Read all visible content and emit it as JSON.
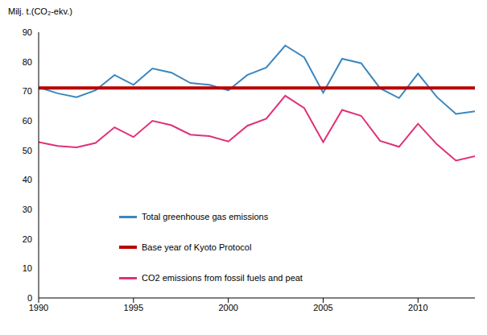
{
  "chart_data": {
    "type": "line",
    "y_label": "Milj. t.(CO₂-ekv.)",
    "x": [
      1990,
      1991,
      1992,
      1993,
      1994,
      1995,
      1996,
      1997,
      1998,
      1999,
      2000,
      2001,
      2002,
      2003,
      2004,
      2005,
      2006,
      2007,
      2008,
      2009,
      2010,
      2011,
      2012,
      2013
    ],
    "series": [
      {
        "name": "Total greenhouse gas emissions",
        "color": "#3a87c0",
        "values": [
          71.3,
          69.3,
          68,
          70.3,
          75.5,
          72.2,
          77.7,
          76.3,
          72.8,
          72.2,
          70.3,
          75.5,
          78,
          85.5,
          81.5,
          69.5,
          81,
          79.5,
          71,
          67.7,
          76,
          68,
          62.3,
          63.2
        ]
      },
      {
        "name": "Base year of Kyoto Protocol",
        "color": "#b80000",
        "values": [
          71.1,
          71.1,
          71.1,
          71.1,
          71.1,
          71.1,
          71.1,
          71.1,
          71.1,
          71.1,
          71.1,
          71.1,
          71.1,
          71.1,
          71.1,
          71.1,
          71.1,
          71.1,
          71.1,
          71.1,
          71.1,
          71.1,
          71.1,
          71.1
        ]
      },
      {
        "name": "CO2 emissions from fossil fuels and peat",
        "color": "#e0307a",
        "values": [
          52.8,
          51.5,
          51,
          52.5,
          57.8,
          54.5,
          60,
          58.5,
          55.3,
          54.8,
          53,
          58.3,
          60.7,
          68.5,
          64.3,
          52.8,
          63.7,
          61.7,
          53.2,
          51.2,
          59,
          52,
          46.5,
          48
        ]
      }
    ],
    "xlim": [
      1990,
      2013
    ],
    "xticks": [
      1990,
      1995,
      2000,
      2005,
      2010
    ],
    "ylim": [
      0,
      90
    ],
    "yticks": [
      0,
      10,
      20,
      30,
      40,
      50,
      60,
      70,
      80,
      90
    ],
    "grid": false,
    "legend": "bottom"
  }
}
